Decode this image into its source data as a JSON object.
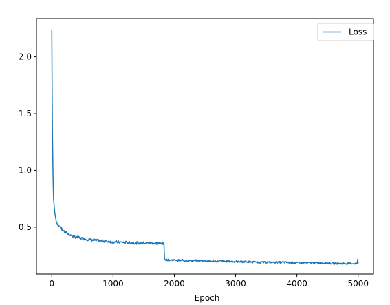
{
  "chart_data": {
    "type": "line",
    "title": "",
    "xlabel": "Epoch",
    "ylabel": "",
    "xlim": [
      -250,
      5250
    ],
    "ylim": [
      0.087,
      2.337
    ],
    "xticks": [
      0,
      1000,
      2000,
      3000,
      4000,
      5000
    ],
    "xtick_labels": [
      "0",
      "1000",
      "2000",
      "3000",
      "4000",
      "5000"
    ],
    "yticks": [
      0.5,
      1.0,
      1.5,
      2.0
    ],
    "ytick_labels": [
      "0.5",
      "1.0",
      "1.5",
      "2.0"
    ],
    "grid": false,
    "legend": {
      "position": "top-right",
      "entries": [
        "Loss"
      ]
    },
    "color": "#1f77b4",
    "series": [
      {
        "name": "Loss",
        "x": [
          0,
          5,
          10,
          20,
          30,
          50,
          75,
          100,
          150,
          200,
          300,
          400,
          500,
          600,
          700,
          800,
          900,
          1000,
          1200,
          1400,
          1600,
          1800,
          1820,
          1830,
          1840,
          1850,
          1900,
          2000,
          2200,
          2400,
          2600,
          2800,
          3000,
          3200,
          3400,
          3600,
          3800,
          4000,
          4200,
          4400,
          4600,
          4800,
          5000
        ],
        "y": [
          2.24,
          1.8,
          1.35,
          0.95,
          0.75,
          0.62,
          0.55,
          0.52,
          0.49,
          0.46,
          0.43,
          0.41,
          0.4,
          0.39,
          0.385,
          0.38,
          0.375,
          0.37,
          0.365,
          0.36,
          0.36,
          0.355,
          0.355,
          0.35,
          0.22,
          0.215,
          0.21,
          0.21,
          0.205,
          0.205,
          0.2,
          0.2,
          0.195,
          0.195,
          0.19,
          0.19,
          0.19,
          0.185,
          0.185,
          0.185,
          0.18,
          0.18,
          0.18
        ]
      }
    ]
  }
}
